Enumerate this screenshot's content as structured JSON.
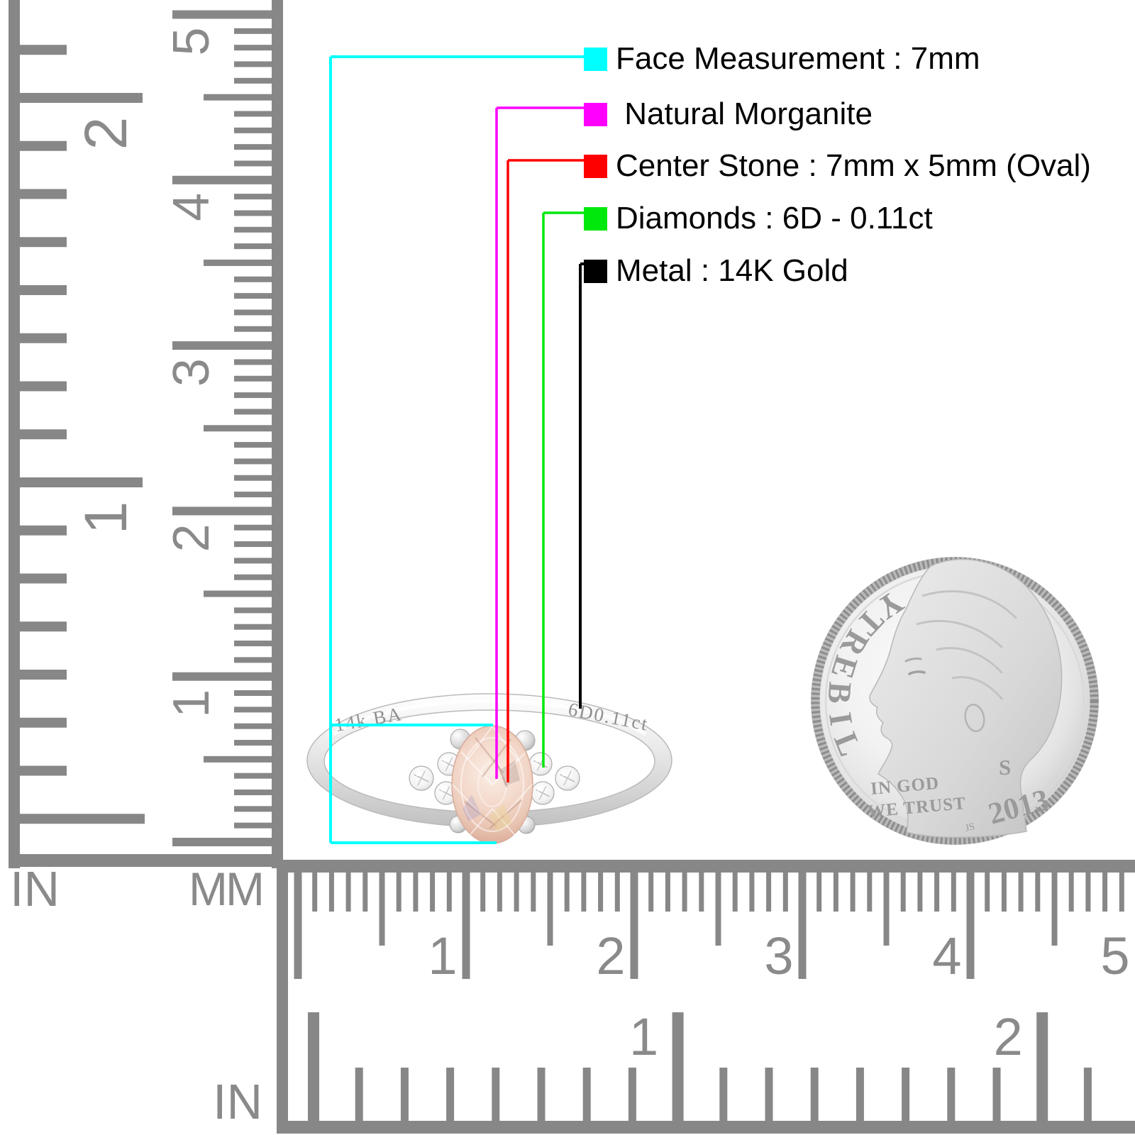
{
  "annotations": {
    "items": [
      {
        "name": "face-measurement",
        "label": "Face Measurement : 7mm",
        "color": "#00FFFF"
      },
      {
        "name": "stone-type",
        "label": " Natural Morganite",
        "color": "#FF00FF"
      },
      {
        "name": "center-stone",
        "label": "Center Stone : 7mm x 5mm (Oval)",
        "color": "#FF0000"
      },
      {
        "name": "diamonds",
        "label": "Diamonds : 6D - 0.11ct",
        "color": "#00E80C"
      },
      {
        "name": "metal",
        "label": "Metal : 14K Gold",
        "color": "#000000"
      }
    ]
  },
  "ring": {
    "engraving_left": "14k BA",
    "engraving_right": "6D0.11ct"
  },
  "coin": {
    "liberty": "LIBERTY",
    "motto_line1": "IN GOD",
    "motto_line2": "WE TRUST",
    "year": "2013",
    "mint_mark": "S",
    "designer_initials": "JS"
  },
  "rulers": {
    "left_inch": {
      "unit": "IN",
      "numbers": [
        "1",
        "2"
      ]
    },
    "left_mm": {
      "unit": "MM",
      "numbers": [
        "1",
        "2",
        "3",
        "4",
        "5"
      ]
    },
    "bottom_mm": {
      "numbers": [
        "1",
        "2",
        "3",
        "4",
        "5"
      ]
    },
    "bottom_inch": {
      "unit": "IN",
      "numbers": [
        "1",
        "2"
      ]
    }
  },
  "colors": {
    "ruler": "#8a8a8a",
    "label_text": "#000000"
  }
}
